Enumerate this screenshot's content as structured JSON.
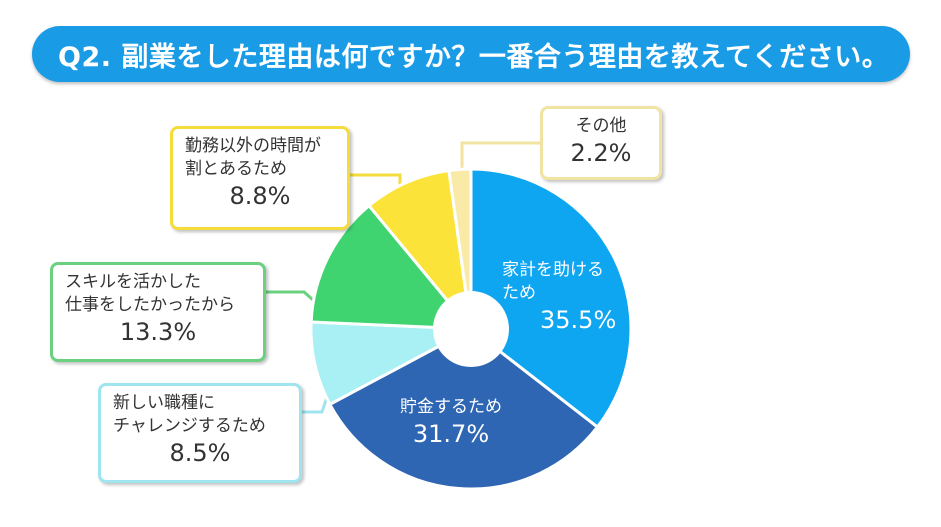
{
  "title": "Q2. 副業をした理由は何ですか？一番合う理由を教えてください。",
  "chart_data": {
    "type": "donut",
    "title": "Q2. 副業をした理由は何ですか？一番合う理由を教えてください。",
    "unit": "%",
    "slices": [
      {
        "label": "家計を助けるため",
        "value": 35.5,
        "color": "#0ea5f1"
      },
      {
        "label": "貯金するため",
        "value": 31.7,
        "color": "#2f66b3"
      },
      {
        "label": "新しい職種にチャレンジするため",
        "value": 8.5,
        "color": "#a8f0f4"
      },
      {
        "label": "スキルを活かした仕事をしたかったから",
        "value": 13.3,
        "color": "#3fd470"
      },
      {
        "label": "勤務以外の時間が割とあるため",
        "value": 8.8,
        "color": "#fbe33a"
      },
      {
        "label": "その他",
        "value": 2.2,
        "color": "#f9eaa8"
      }
    ]
  },
  "labels": {
    "household": {
      "line1": "家計を助ける",
      "line2": "ため",
      "pct": "35.5%"
    },
    "savings": {
      "line1": "貯金するため",
      "pct": "31.7%"
    },
    "free_time": {
      "line1": "勤務以外の時間が",
      "line2": "割とあるため",
      "pct": "8.8%"
    },
    "other": {
      "line1": "その他",
      "pct": "2.2%"
    },
    "skills": {
      "line1": "スキルを活かした",
      "line2": "仕事をしたかったから",
      "pct": "13.3%"
    },
    "new_job": {
      "line1": "新しい職種に",
      "line2": "チャレンジするため",
      "pct": "8.5%"
    }
  }
}
